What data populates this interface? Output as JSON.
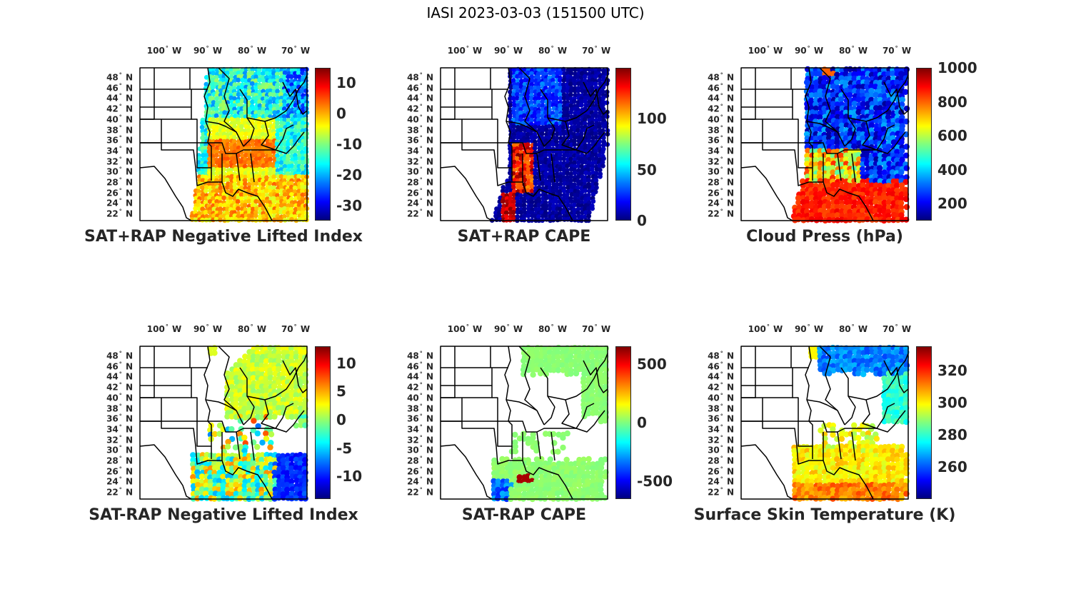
{
  "title": "IASI 2023-03-03 (151500 UTC)",
  "lon_labels": [
    {
      "deg": "100",
      "hem": "W"
    },
    {
      "deg": "90",
      "hem": "W"
    },
    {
      "deg": "80",
      "hem": "W"
    },
    {
      "deg": "70",
      "hem": "W"
    }
  ],
  "lat_labels": [
    {
      "deg": "48",
      "hem": "N"
    },
    {
      "deg": "46",
      "hem": "N"
    },
    {
      "deg": "44",
      "hem": "N"
    },
    {
      "deg": "42",
      "hem": "N"
    },
    {
      "deg": "40",
      "hem": "N"
    },
    {
      "deg": "38",
      "hem": "N"
    },
    {
      "deg": "36",
      "hem": "N"
    },
    {
      "deg": "34",
      "hem": "N"
    },
    {
      "deg": "32",
      "hem": "N"
    },
    {
      "deg": "30",
      "hem": "N"
    },
    {
      "deg": "28",
      "hem": "N"
    },
    {
      "deg": "26",
      "hem": "N"
    },
    {
      "deg": "24",
      "hem": "N"
    },
    {
      "deg": "22",
      "hem": "N"
    }
  ],
  "panels": [
    {
      "title": "SAT+RAP Negative Lifted Index",
      "cmin": -35,
      "cmax": 15,
      "ticks": [
        {
          "v": 10,
          "label": "10"
        },
        {
          "v": 0,
          "label": "0"
        },
        {
          "v": -10,
          "label": "-10"
        },
        {
          "v": -20,
          "label": "-20"
        },
        {
          "v": -30,
          "label": "-30"
        }
      ],
      "pattern": "li"
    },
    {
      "title": "SAT+RAP CAPE",
      "cmin": 0,
      "cmax": 150,
      "ticks": [
        {
          "v": 100,
          "label": "100"
        },
        {
          "v": 50,
          "label": "50"
        },
        {
          "v": 0,
          "label": "0"
        }
      ],
      "pattern": "cape"
    },
    {
      "title": "Cloud Press (hPa)",
      "cmin": 100,
      "cmax": 1000,
      "ticks": [
        {
          "v": 1000,
          "label": "1000"
        },
        {
          "v": 800,
          "label": "800"
        },
        {
          "v": 600,
          "label": "600"
        },
        {
          "v": 400,
          "label": "400"
        },
        {
          "v": 200,
          "label": "200"
        }
      ],
      "pattern": "cloud"
    },
    {
      "title": "SAT-RAP Negative Lifted Index",
      "cmin": -14,
      "cmax": 13,
      "ticks": [
        {
          "v": 10,
          "label": "10"
        },
        {
          "v": 5,
          "label": "5"
        },
        {
          "v": 0,
          "label": "0"
        },
        {
          "v": -5,
          "label": "-5"
        },
        {
          "v": -10,
          "label": "-10"
        }
      ],
      "pattern": "dli"
    },
    {
      "title": "SAT-RAP CAPE",
      "cmin": -650,
      "cmax": 650,
      "ticks": [
        {
          "v": 500,
          "label": "500"
        },
        {
          "v": 0,
          "label": "0"
        },
        {
          "v": -500,
          "label": "-500"
        }
      ],
      "pattern": "dcape"
    },
    {
      "title": "Surface Skin Temperature (K)",
      "cmin": 240,
      "cmax": 335,
      "ticks": [
        {
          "v": 320,
          "label": "320"
        },
        {
          "v": 300,
          "label": "300"
        },
        {
          "v": 280,
          "label": "280"
        },
        {
          "v": 260,
          "label": "260"
        }
      ],
      "pattern": "skin"
    }
  ]
}
